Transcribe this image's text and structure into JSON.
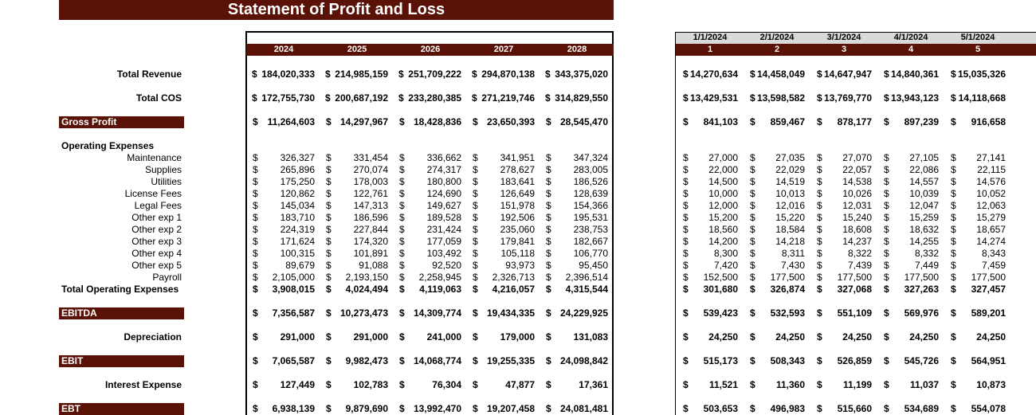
{
  "title": "Statement of Profit and Loss",
  "currency": "$",
  "section_label": "Operating Expenses",
  "annual": {
    "headers": [
      "2024",
      "2025",
      "2026",
      "2027",
      "2028"
    ]
  },
  "monthly": {
    "dates": [
      "1/1/2024",
      "2/1/2024",
      "3/1/2024",
      "4/1/2024",
      "5/1/2024"
    ],
    "periods": [
      "1",
      "2",
      "3",
      "4",
      "5"
    ]
  },
  "rows": [
    {
      "label": "Total Revenue",
      "annual": [
        "184,020,333",
        "214,985,159",
        "251,709,222",
        "294,870,138",
        "343,375,020"
      ],
      "monthly": [
        "14,270,634",
        "14,458,049",
        "14,647,947",
        "14,840,361",
        "15,035,326"
      ]
    },
    {
      "label": "Total COS",
      "annual": [
        "172,755,730",
        "200,687,192",
        "233,280,385",
        "271,219,746",
        "314,829,550"
      ],
      "monthly": [
        "13,429,531",
        "13,598,582",
        "13,769,770",
        "13,943,123",
        "14,118,668"
      ]
    },
    {
      "label": "Gross Profit",
      "annual": [
        "11,264,603",
        "14,297,967",
        "18,428,836",
        "23,650,393",
        "28,545,470"
      ],
      "monthly": [
        "841,103",
        "859,467",
        "878,177",
        "897,239",
        "916,658"
      ]
    },
    {
      "label": "Maintenance",
      "annual": [
        "326,327",
        "331,454",
        "336,662",
        "341,951",
        "347,324"
      ],
      "monthly": [
        "27,000",
        "27,035",
        "27,070",
        "27,105",
        "27,141"
      ]
    },
    {
      "label": "Supplies",
      "annual": [
        "265,896",
        "270,074",
        "274,317",
        "278,627",
        "283,005"
      ],
      "monthly": [
        "22,000",
        "22,029",
        "22,057",
        "22,086",
        "22,115"
      ]
    },
    {
      "label": "Utilities",
      "annual": [
        "175,250",
        "178,003",
        "180,800",
        "183,641",
        "186,526"
      ],
      "monthly": [
        "14,500",
        "14,519",
        "14,538",
        "14,557",
        "14,576"
      ]
    },
    {
      "label": "License Fees",
      "annual": [
        "120,862",
        "122,761",
        "124,690",
        "126,649",
        "128,639"
      ],
      "monthly": [
        "10,000",
        "10,013",
        "10,026",
        "10,039",
        "10,052"
      ]
    },
    {
      "label": "Legal Fees",
      "annual": [
        "145,034",
        "147,313",
        "149,627",
        "151,978",
        "154,366"
      ],
      "monthly": [
        "12,000",
        "12,016",
        "12,031",
        "12,047",
        "12,063"
      ]
    },
    {
      "label": "Other exp 1",
      "annual": [
        "183,710",
        "186,596",
        "189,528",
        "192,506",
        "195,531"
      ],
      "monthly": [
        "15,200",
        "15,220",
        "15,240",
        "15,259",
        "15,279"
      ]
    },
    {
      "label": "Other exp 2",
      "annual": [
        "224,319",
        "227,844",
        "231,424",
        "235,060",
        "238,753"
      ],
      "monthly": [
        "18,560",
        "18,584",
        "18,608",
        "18,632",
        "18,657"
      ]
    },
    {
      "label": "Other exp 3",
      "annual": [
        "171,624",
        "174,320",
        "177,059",
        "179,841",
        "182,667"
      ],
      "monthly": [
        "14,200",
        "14,218",
        "14,237",
        "14,255",
        "14,274"
      ]
    },
    {
      "label": "Other exp 4",
      "annual": [
        "100,315",
        "101,891",
        "103,492",
        "105,118",
        "106,770"
      ],
      "monthly": [
        "8,300",
        "8,311",
        "8,322",
        "8,332",
        "8,343"
      ]
    },
    {
      "label": "Other exp 5",
      "annual": [
        "89,679",
        "91,088",
        "92,520",
        "93,973",
        "95,450"
      ],
      "monthly": [
        "7,420",
        "7,430",
        "7,439",
        "7,449",
        "7,459"
      ]
    },
    {
      "label": "Payroll",
      "annual": [
        "2,105,000",
        "2,193,150",
        "2,258,945",
        "2,326,713",
        "2,396,514"
      ],
      "monthly": [
        "152,500",
        "177,500",
        "177,500",
        "177,500",
        "177,500"
      ]
    },
    {
      "label": "Total Operating Expenses",
      "annual": [
        "3,908,015",
        "4,024,494",
        "4,119,063",
        "4,216,057",
        "4,315,544"
      ],
      "monthly": [
        "301,680",
        "326,874",
        "327,068",
        "327,263",
        "327,457"
      ]
    },
    {
      "label": "EBITDA",
      "annual": [
        "7,356,587",
        "10,273,473",
        "14,309,774",
        "19,434,335",
        "24,229,925"
      ],
      "monthly": [
        "539,423",
        "532,593",
        "551,109",
        "569,976",
        "589,201"
      ]
    },
    {
      "label": "Depreciation",
      "annual": [
        "291,000",
        "291,000",
        "241,000",
        "179,000",
        "131,083"
      ],
      "monthly": [
        "24,250",
        "24,250",
        "24,250",
        "24,250",
        "24,250"
      ]
    },
    {
      "label": "EBIT",
      "annual": [
        "7,065,587",
        "9,982,473",
        "14,068,774",
        "19,255,335",
        "24,098,842"
      ],
      "monthly": [
        "515,173",
        "508,343",
        "526,859",
        "545,726",
        "564,951"
      ]
    },
    {
      "label": "Interest Expense",
      "annual": [
        "127,449",
        "102,783",
        "76,304",
        "47,877",
        "17,361"
      ],
      "monthly": [
        "11,521",
        "11,360",
        "11,199",
        "11,037",
        "10,873"
      ]
    },
    {
      "label": "EBT",
      "annual": [
        "6,938,139",
        "9,879,690",
        "13,992,470",
        "19,207,458",
        "24,081,481"
      ],
      "monthly": [
        "503,653",
        "496,983",
        "515,660",
        "534,689",
        "554,078"
      ]
    }
  ]
}
